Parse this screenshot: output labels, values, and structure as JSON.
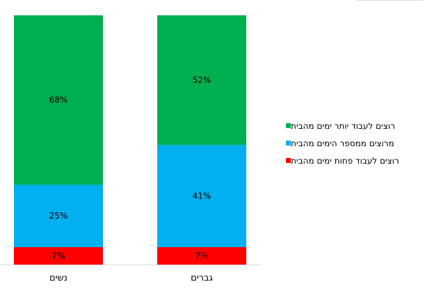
{
  "chart_data": {
    "type": "bar",
    "stacked": true,
    "percent": true,
    "categories": [
      "נשים",
      "גברים"
    ],
    "series": [
      {
        "name": "רוצים לעבוד פחות ימים מהבית",
        "color": "#ff0000",
        "values": [
          7,
          7
        ],
        "labels": [
          "7%",
          "7%"
        ]
      },
      {
        "name": "מרוצים ממספר הימים מהבית",
        "color": "#00b0f0",
        "values": [
          25,
          41
        ],
        "labels": [
          "25%",
          "41%"
        ]
      },
      {
        "name": "רוצים לעבוד יותר ימים מהבית",
        "color": "#00b050",
        "values": [
          68,
          52
        ],
        "labels": [
          "68%",
          "52%"
        ]
      }
    ],
    "ylim": [
      0,
      100
    ],
    "grid": false,
    "legend": "right",
    "legend_order": [
      "רוצים לעבוד יותר ימים מהבית",
      "מרוצים ממספר הימים מהבית",
      "רוצים לעבוד פחות ימים מהבית"
    ]
  }
}
